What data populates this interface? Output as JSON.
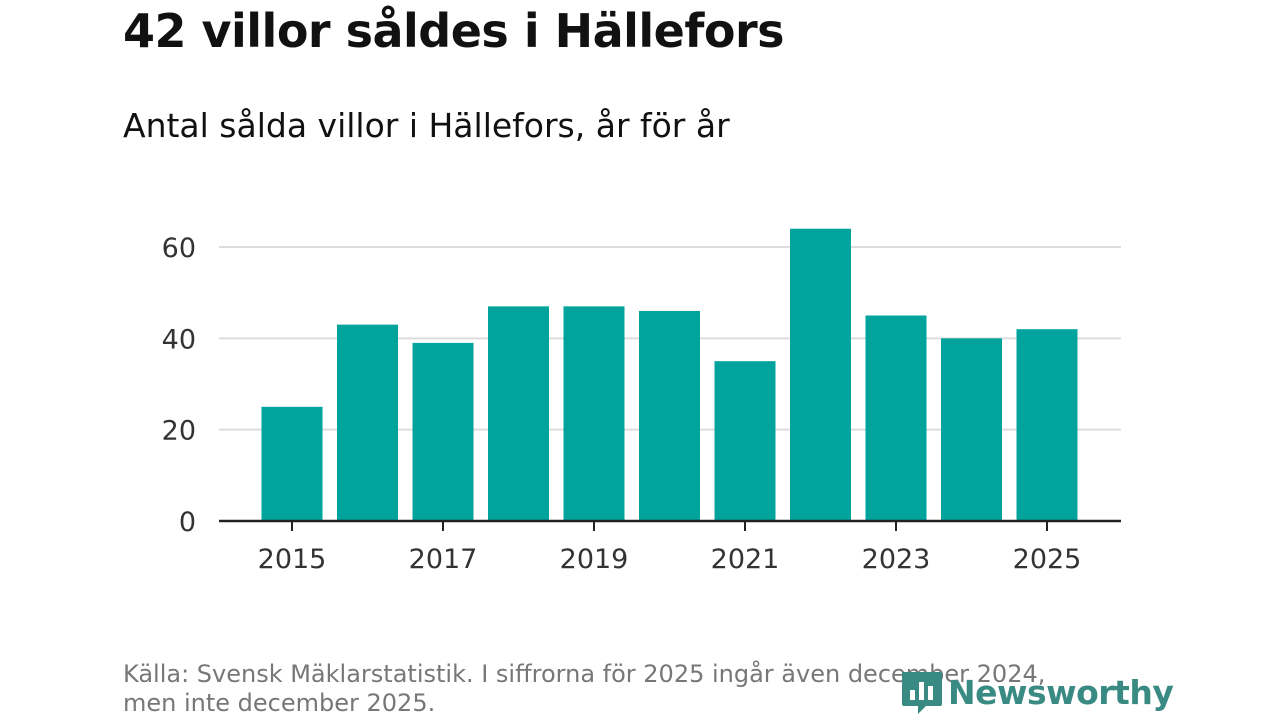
{
  "header": {
    "title": "42 villor såldes i Hällefors",
    "subtitle": "Antal sålda villor i Hällefors, år för år"
  },
  "chart_data": {
    "type": "bar",
    "categories": [
      "2015",
      "2016",
      "2017",
      "2018",
      "2019",
      "2020",
      "2021",
      "2022",
      "2023",
      "2024",
      "2025"
    ],
    "values": [
      25,
      43,
      39,
      47,
      47,
      46,
      35,
      64,
      45,
      40,
      42
    ],
    "x_tick_labels": [
      "2015",
      "2017",
      "2019",
      "2021",
      "2023",
      "2025"
    ],
    "y_ticks": [
      0,
      20,
      40,
      60
    ],
    "ylim": [
      0,
      60
    ],
    "grid": true,
    "bar_color": "#00a49c",
    "title": "42 villor såldes i Hällefors",
    "subtitle": "Antal sålda villor i Hällefors, år för år",
    "xlabel": "",
    "ylabel": ""
  },
  "footer": {
    "source_line1": "Källa: Svensk Mäklarstatistik. I siffrorna för 2025 ingår även december 2024,",
    "source_line2": "men inte december 2025."
  },
  "logo": {
    "text": "Newsworthy",
    "color": "#3a8a84",
    "icon": "newsworthy-logo-icon"
  }
}
